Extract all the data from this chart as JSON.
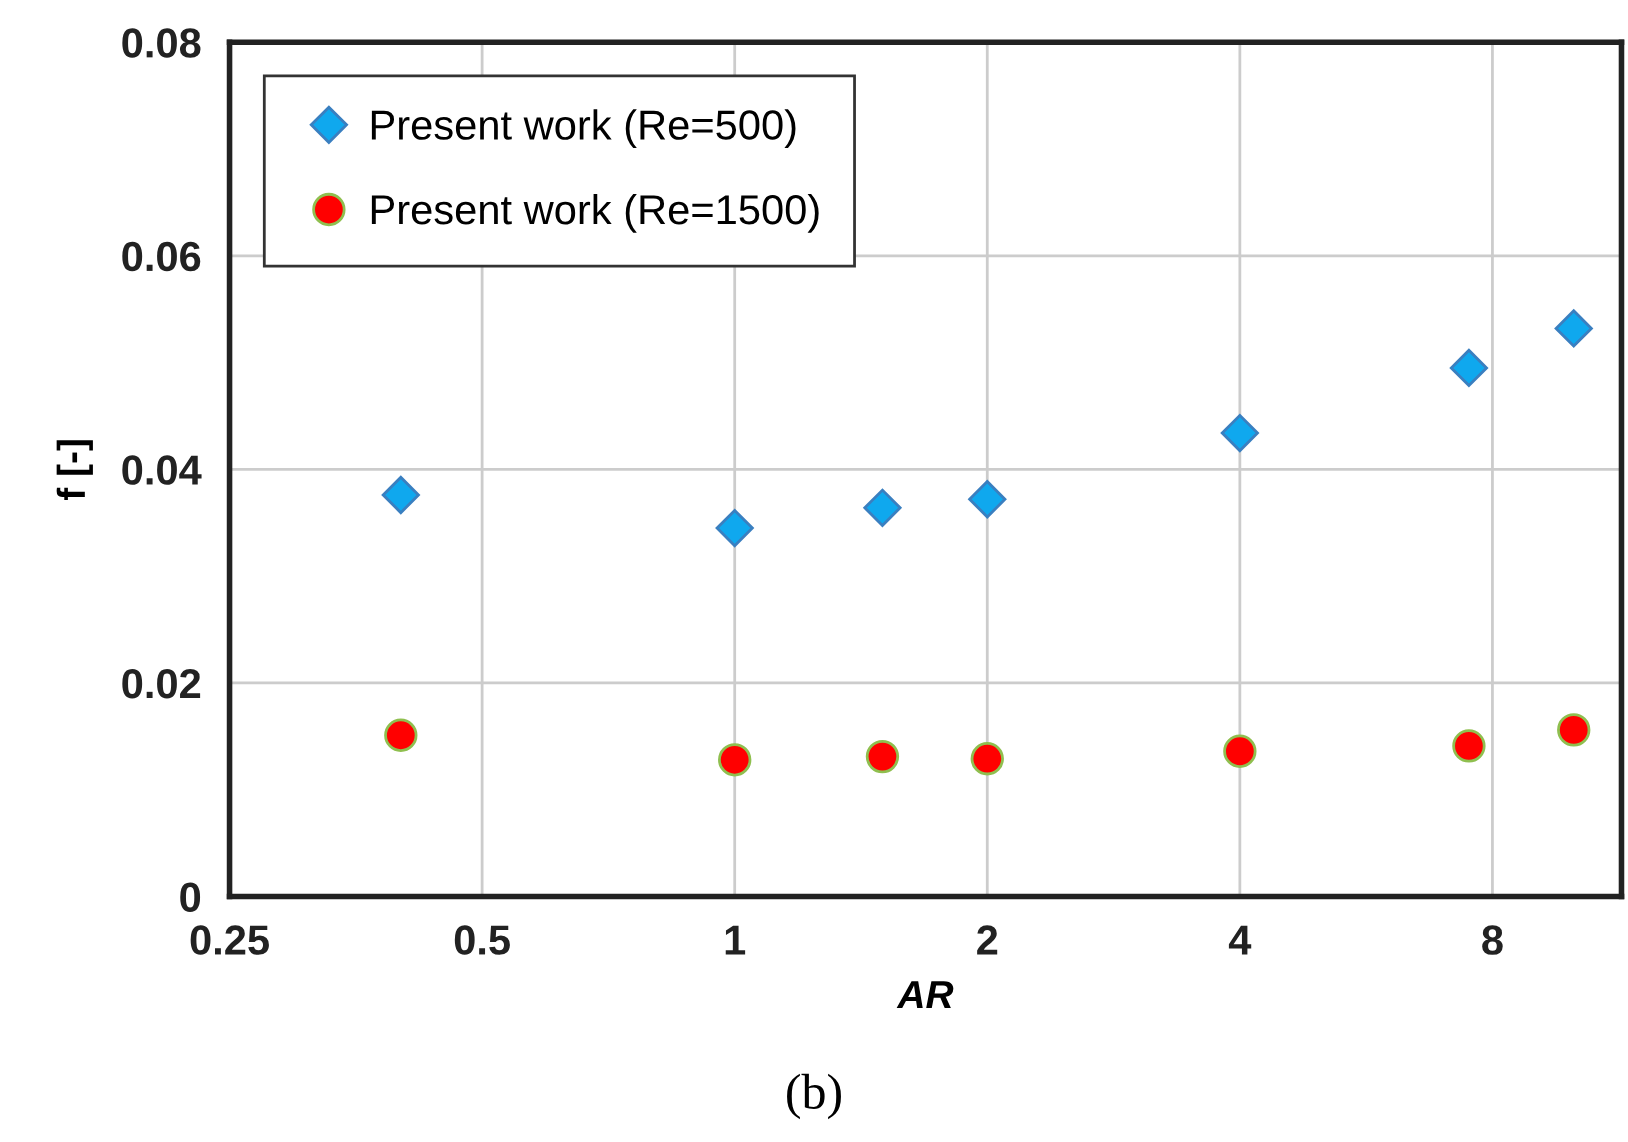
{
  "chart_data": {
    "type": "scatter",
    "xlabel": "AR",
    "ylabel": "f [-]",
    "annotations": [
      "(b)"
    ],
    "log": "x",
    "xlim": [
      0.25,
      11.4
    ],
    "xticks": [
      0.25,
      0.5,
      1,
      2,
      4,
      8
    ],
    "ylim": [
      0,
      0.08
    ],
    "yticks": [
      {
        "value": 0,
        "label": "0"
      },
      {
        "value": 0.02,
        "label": "0.02"
      },
      {
        "value": 0.04,
        "label": "0.04"
      },
      {
        "value": 0.06,
        "label": "0.06"
      },
      {
        "value": 0.08,
        "label": "0.08"
      }
    ],
    "grid": true,
    "legend": "top left",
    "x": [
      0.4,
      1,
      1.5,
      2,
      4,
      7.5,
      10
    ],
    "series": [
      {
        "name": "Present work (Re=500)",
        "color": "#0fa8ee",
        "marker": "diamond",
        "values": [
          0.0376,
          0.0345,
          0.0364,
          0.0372,
          0.0434,
          0.0495,
          0.0532
        ]
      },
      {
        "name": "Present work (Re=1500)",
        "color": "#ff0000",
        "marker": "circle",
        "values": [
          0.0151,
          0.0128,
          0.0131,
          0.0129,
          0.0136,
          0.0141,
          0.0156
        ]
      }
    ]
  }
}
